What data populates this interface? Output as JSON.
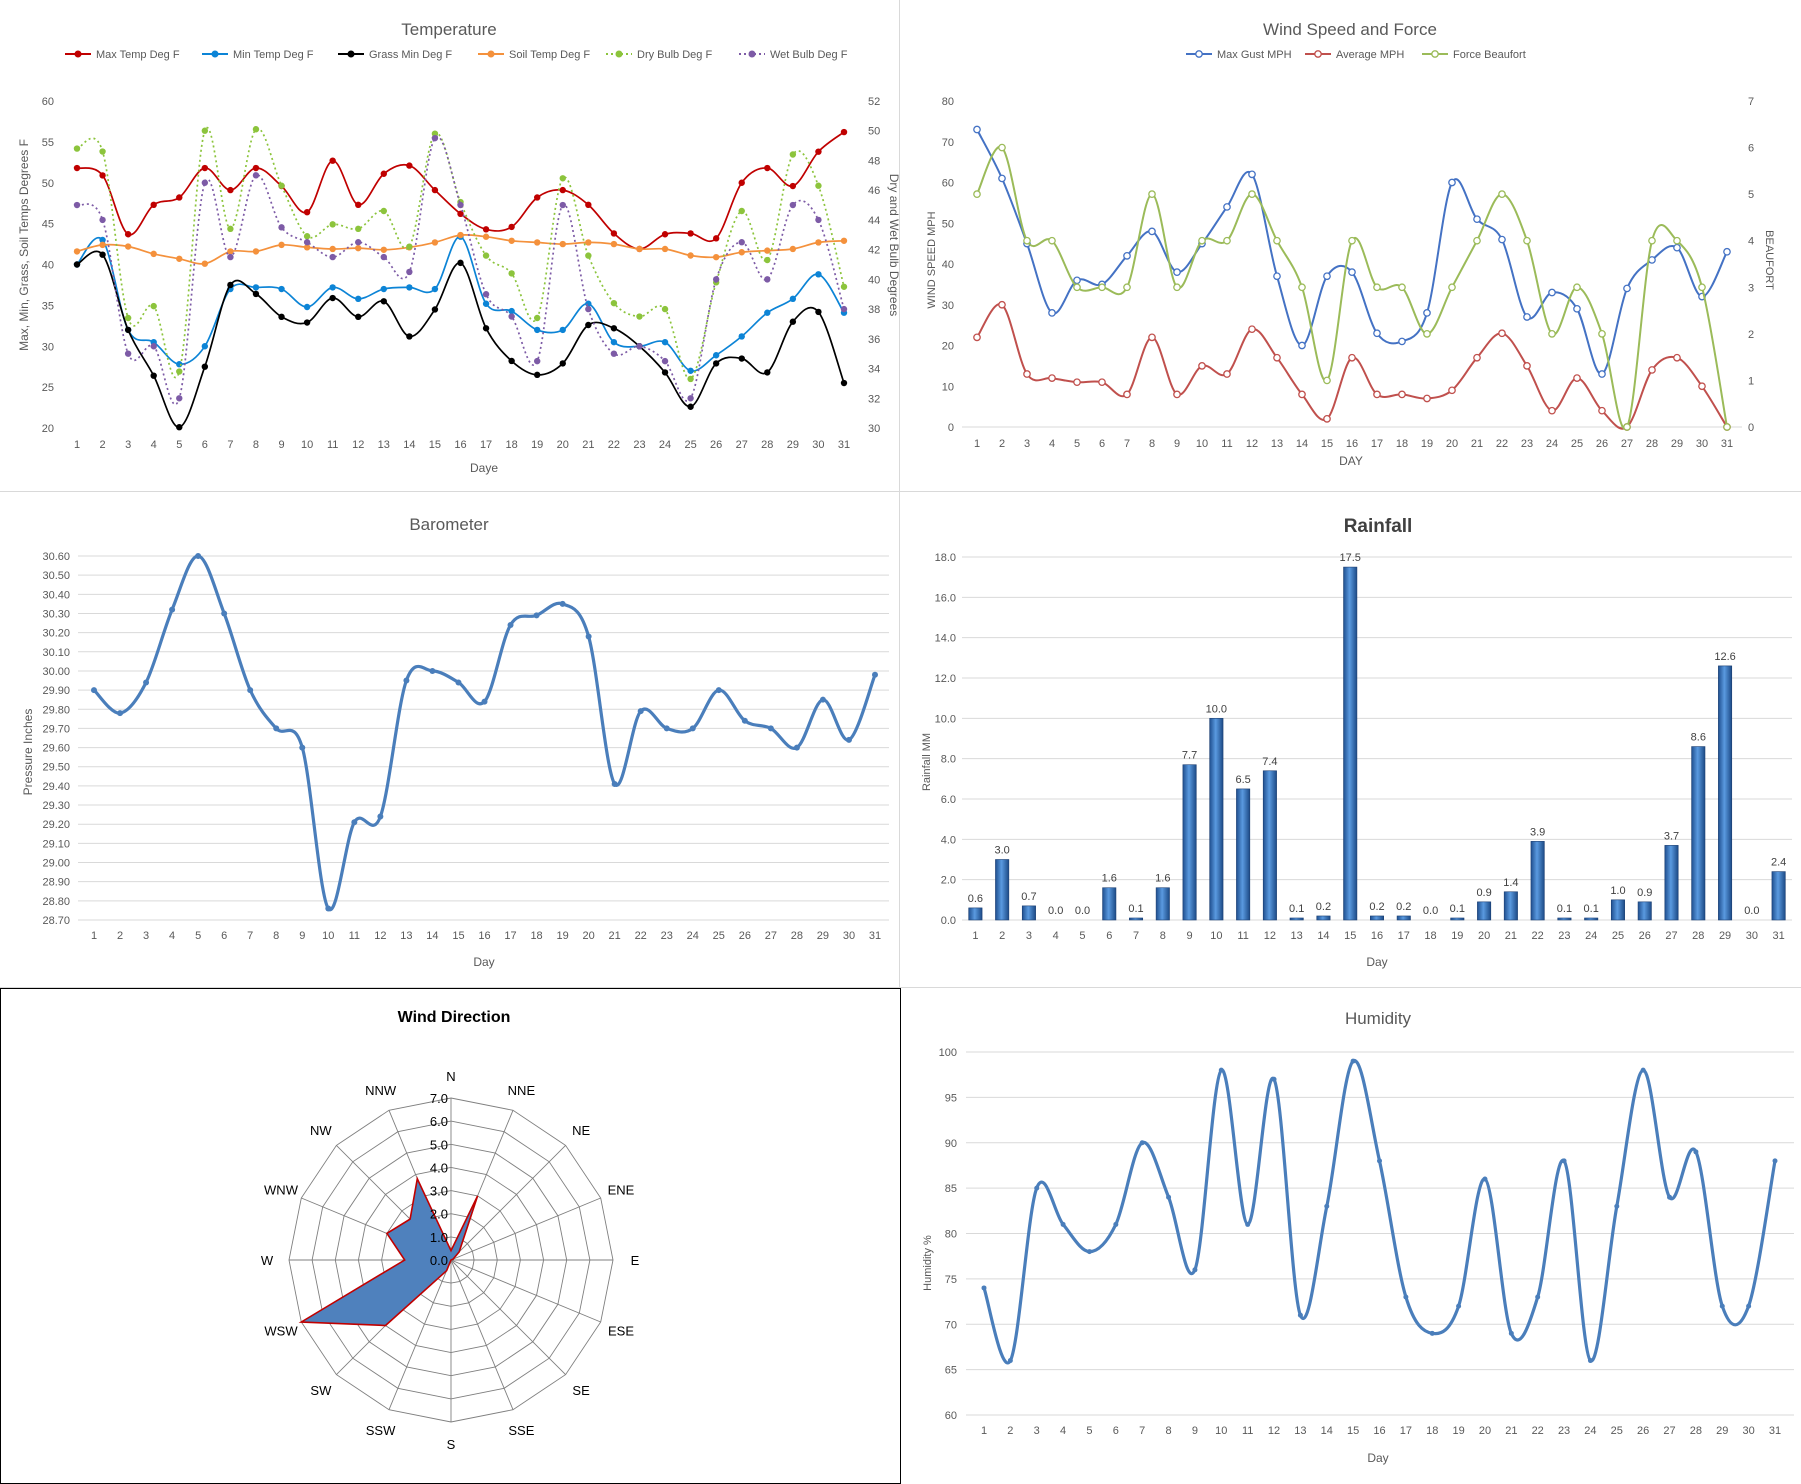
{
  "chart_data": [
    {
      "id": "temperature",
      "type": "line",
      "title": "Temperature",
      "xlabel": "Daye",
      "ylabel": "Max, Min, Grass, Soil Temps Degrees F",
      "y2label": "Dry and Wet Bulb Degrees",
      "ylim": [
        20,
        60
      ],
      "y2lim": [
        30,
        52
      ],
      "yticks": [
        "20",
        "25",
        "30",
        "35",
        "40",
        "45",
        "50",
        "55",
        "60"
      ],
      "y2ticks": [
        "30",
        "32",
        "34",
        "36",
        "38",
        "40",
        "42",
        "44",
        "46",
        "48",
        "50",
        "52"
      ],
      "x": [
        1,
        2,
        3,
        4,
        5,
        6,
        7,
        8,
        9,
        10,
        11,
        12,
        13,
        14,
        15,
        16,
        17,
        18,
        19,
        20,
        21,
        22,
        23,
        24,
        25,
        26,
        27,
        28,
        29,
        30,
        31
      ],
      "grid": false,
      "legend": "top",
      "series": [
        {
          "name": "Max Temp Deg F",
          "color": "#c00000",
          "axis": "left",
          "dash": false,
          "marker": "filled",
          "values": [
            51.8,
            50.9,
            43.7,
            47.3,
            48.2,
            51.8,
            49.1,
            51.8,
            49.6,
            46.4,
            52.7,
            47.3,
            51.1,
            52.1,
            49.1,
            46.2,
            44.3,
            44.6,
            48.2,
            49.1,
            47.3,
            43.8,
            41.9,
            43.7,
            43.8,
            43.2,
            50.0,
            51.8,
            49.6,
            53.8,
            56.2
          ]
        },
        {
          "name": "Min Temp Deg F",
          "color": "#0c84d6",
          "axis": "left",
          "dash": false,
          "marker": "filled",
          "values": [
            40.0,
            43.0,
            32.0,
            30.5,
            27.8,
            30.0,
            37.0,
            37.2,
            37.0,
            34.8,
            37.2,
            35.8,
            37.0,
            37.2,
            37.0,
            43.4,
            35.2,
            34.3,
            32.0,
            32.0,
            35.2,
            30.5,
            30.0,
            30.5,
            27.0,
            28.9,
            31.2,
            34.1,
            35.8,
            38.8,
            34.1
          ]
        },
        {
          "name": "Grass Min Deg F",
          "color": "#000000",
          "axis": "left",
          "dash": false,
          "marker": "filled",
          "values": [
            40.0,
            41.2,
            32.0,
            26.4,
            20.1,
            27.5,
            37.5,
            36.4,
            33.6,
            32.9,
            35.9,
            33.6,
            35.5,
            31.2,
            34.5,
            40.2,
            32.2,
            28.2,
            26.5,
            27.9,
            32.6,
            32.2,
            30.0,
            26.8,
            22.6,
            27.9,
            28.5,
            26.8,
            33.0,
            34.2,
            25.5
          ]
        },
        {
          "name": "Soil Temp Deg F",
          "color": "#f4913c",
          "axis": "left",
          "dash": false,
          "marker": "filled",
          "values": [
            41.6,
            42.4,
            42.2,
            41.3,
            40.7,
            40.1,
            41.6,
            41.6,
            42.4,
            42.1,
            41.9,
            42.0,
            41.8,
            42.1,
            42.7,
            43.6,
            43.4,
            42.9,
            42.7,
            42.5,
            42.7,
            42.5,
            41.9,
            41.9,
            41.1,
            40.9,
            41.5,
            41.7,
            41.9,
            42.7,
            42.9
          ]
        },
        {
          "name": "Dry Bulb Deg F",
          "color": "#8cc43c",
          "axis": "right",
          "dash": true,
          "marker": "filled",
          "values": [
            48.8,
            48.6,
            37.4,
            38.2,
            33.8,
            50.0,
            43.4,
            50.1,
            46.3,
            42.9,
            43.7,
            43.4,
            44.6,
            42.2,
            49.8,
            45.2,
            41.6,
            40.4,
            37.4,
            46.8,
            41.6,
            38.4,
            37.5,
            38.0,
            33.3,
            39.8,
            44.6,
            41.3,
            48.4,
            46.3,
            39.5
          ]
        },
        {
          "name": "Wet Bulb Deg F",
          "color": "#7d5ba6",
          "axis": "right",
          "dash": true,
          "marker": "filled",
          "values": [
            45.0,
            44.0,
            35.0,
            35.5,
            32.0,
            46.5,
            41.5,
            47.0,
            43.5,
            42.5,
            41.5,
            42.5,
            41.5,
            40.5,
            49.5,
            45.0,
            39.0,
            37.5,
            34.5,
            45.0,
            38.0,
            35.0,
            35.5,
            34.5,
            32.0,
            40.0,
            42.5,
            40.0,
            45.0,
            44.0,
            38.0
          ]
        }
      ]
    },
    {
      "id": "wind",
      "type": "line",
      "title": "Wind Speed and Force",
      "xlabel": "DAY",
      "ylabel": "WIND SPEED MPH",
      "y2label": "BEAUFORT",
      "ylim": [
        0,
        80
      ],
      "y2lim": [
        0,
        7
      ],
      "yticks": [
        "0",
        "10",
        "20",
        "30",
        "40",
        "50",
        "60",
        "70",
        "80"
      ],
      "y2ticks": [
        "0",
        "1",
        "2",
        "3",
        "4",
        "5",
        "6",
        "7"
      ],
      "x": [
        1,
        2,
        3,
        4,
        5,
        6,
        7,
        8,
        9,
        10,
        11,
        12,
        13,
        14,
        15,
        16,
        17,
        18,
        19,
        20,
        21,
        22,
        23,
        24,
        25,
        26,
        27,
        28,
        29,
        30,
        31
      ],
      "grid": false,
      "legend": "top",
      "series": [
        {
          "name": "Max Gust MPH",
          "color": "#4472c4",
          "axis": "left",
          "marker": "open",
          "values": [
            73,
            61,
            45,
            28,
            36,
            35,
            42,
            48,
            38,
            45,
            54,
            62,
            37,
            20,
            37,
            38,
            23,
            21,
            28,
            60,
            51,
            46,
            27,
            33,
            29,
            13,
            34,
            41,
            44,
            32,
            43
          ]
        },
        {
          "name": "Average MPH",
          "color": "#c0504d",
          "axis": "left",
          "marker": "open",
          "values": [
            22,
            30,
            13,
            12,
            11,
            11,
            8,
            22,
            8,
            15,
            13,
            24,
            17,
            8,
            2,
            17,
            8,
            8,
            7,
            9,
            17,
            23,
            15,
            4,
            12,
            4,
            0,
            14,
            17,
            10,
            0
          ]
        },
        {
          "name": "Force Beaufort",
          "color": "#9bbb59",
          "axis": "right",
          "marker": "open",
          "values": [
            5,
            6,
            4,
            4,
            3,
            3,
            3,
            5,
            3,
            4,
            4,
            5,
            4,
            3,
            1,
            4,
            3,
            3,
            2,
            3,
            4,
            5,
            4,
            2,
            3,
            2,
            0,
            4,
            4,
            3,
            0
          ]
        }
      ]
    },
    {
      "id": "barometer",
      "type": "line",
      "title": "Barometer",
      "xlabel": "Day",
      "ylabel": "Pressure Inches",
      "ylim": [
        28.7,
        30.6
      ],
      "yticks": [
        "28.70",
        "28.80",
        "28.90",
        "29.00",
        "29.10",
        "29.20",
        "29.30",
        "29.40",
        "29.50",
        "29.60",
        "29.70",
        "29.80",
        "29.90",
        "30.00",
        "30.10",
        "30.20",
        "30.30",
        "30.40",
        "30.50",
        "30.60"
      ],
      "x": [
        1,
        2,
        3,
        4,
        5,
        6,
        7,
        8,
        9,
        10,
        11,
        12,
        13,
        14,
        15,
        16,
        17,
        18,
        19,
        20,
        21,
        22,
        23,
        24,
        25,
        26,
        27,
        28,
        29,
        30,
        31
      ],
      "grid": true,
      "series": [
        {
          "color": "#4a7ebb",
          "values": [
            29.9,
            29.78,
            29.94,
            30.32,
            30.6,
            30.3,
            29.9,
            29.7,
            29.6,
            28.76,
            29.21,
            29.24,
            29.95,
            30.0,
            29.94,
            29.84,
            30.24,
            30.29,
            30.35,
            30.18,
            29.41,
            29.79,
            29.7,
            29.7,
            29.9,
            29.74,
            29.7,
            29.6,
            29.85,
            29.64,
            29.98
          ]
        }
      ]
    },
    {
      "id": "rainfall",
      "type": "bar",
      "title": "Rainfall",
      "xlabel": "Day",
      "ylabel": "Rainfall MM",
      "ylim": [
        0,
        18
      ],
      "yticks": [
        "0.0",
        "2.0",
        "4.0",
        "6.0",
        "8.0",
        "10.0",
        "12.0",
        "14.0",
        "16.0",
        "18.0"
      ],
      "categories": [
        "1",
        "2",
        "3",
        "4",
        "5",
        "6",
        "7",
        "8",
        "9",
        "10",
        "11",
        "12",
        "13",
        "14",
        "15",
        "16",
        "17",
        "18",
        "19",
        "20",
        "21",
        "22",
        "23",
        "24",
        "25",
        "26",
        "27",
        "28",
        "29",
        "30",
        "31"
      ],
      "grid": true,
      "series": [
        {
          "color": "#2e6db4",
          "values": [
            0.6,
            3.0,
            0.7,
            0.0,
            0.0,
            1.6,
            0.1,
            1.6,
            7.7,
            10.0,
            6.5,
            7.4,
            0.1,
            0.2,
            17.5,
            0.2,
            0.2,
            0.0,
            0.1,
            0.9,
            1.4,
            3.9,
            0.1,
            0.1,
            1.0,
            0.9,
            3.7,
            8.6,
            12.6,
            0.0,
            2.4
          ],
          "labels": [
            "0.6",
            "3.0",
            "0.7",
            "0.0",
            "0.0",
            "1.6",
            "0.1",
            "1.6",
            "7.7",
            "10.0",
            "6.5",
            "7.4",
            "0.1",
            "0.2",
            "17.5",
            "0.2",
            "0.2",
            "0.0",
            "0.1",
            "0.9",
            "1.4",
            "3.9",
            "0.1",
            "0.1",
            "1.0",
            "0.9",
            "3.7",
            "8.6",
            "12.6",
            "0.0",
            "2.4"
          ]
        }
      ]
    },
    {
      "id": "wind_direction",
      "type": "radar",
      "title": "Wind Direction",
      "rlim": [
        0,
        7
      ],
      "rticks": [
        "0.0",
        "1.0",
        "2.0",
        "3.0",
        "4.0",
        "5.0",
        "6.0",
        "7.0"
      ],
      "categories": [
        "N",
        "NNE",
        "NE",
        "ENE",
        "E",
        "ESE",
        "SE",
        "SSE",
        "S",
        "SSW",
        "SW",
        "WSW",
        "W",
        "WNW",
        "NW",
        "NNW"
      ],
      "series": [
        {
          "color": "#4f81bd",
          "edge": "#c00000",
          "values": [
            0.4,
            3.0,
            0.5,
            0.1,
            0,
            0,
            0,
            0,
            0,
            0.5,
            4.0,
            7.0,
            2.0,
            3.0,
            2.5,
            3.8
          ]
        }
      ]
    },
    {
      "id": "humidity",
      "type": "line",
      "title": "Humidity",
      "xlabel": "Day",
      "ylabel": "Humidity %",
      "ylim": [
        60,
        100
      ],
      "yticks": [
        "60",
        "65",
        "70",
        "75",
        "80",
        "85",
        "90",
        "95",
        "100"
      ],
      "x": [
        1,
        2,
        3,
        4,
        5,
        6,
        7,
        8,
        9,
        10,
        11,
        12,
        13,
        14,
        15,
        16,
        17,
        18,
        19,
        20,
        21,
        22,
        23,
        24,
        25,
        26,
        27,
        28,
        29,
        30,
        31
      ],
      "grid": true,
      "series": [
        {
          "color": "#4a7ebb",
          "values": [
            74,
            66,
            85,
            81,
            78,
            81,
            90,
            84,
            76,
            98,
            81,
            97,
            71,
            83,
            99,
            88,
            73,
            69,
            72,
            86,
            69,
            73,
            88,
            66,
            83,
            98,
            84,
            89,
            72,
            72,
            88
          ]
        }
      ]
    }
  ]
}
